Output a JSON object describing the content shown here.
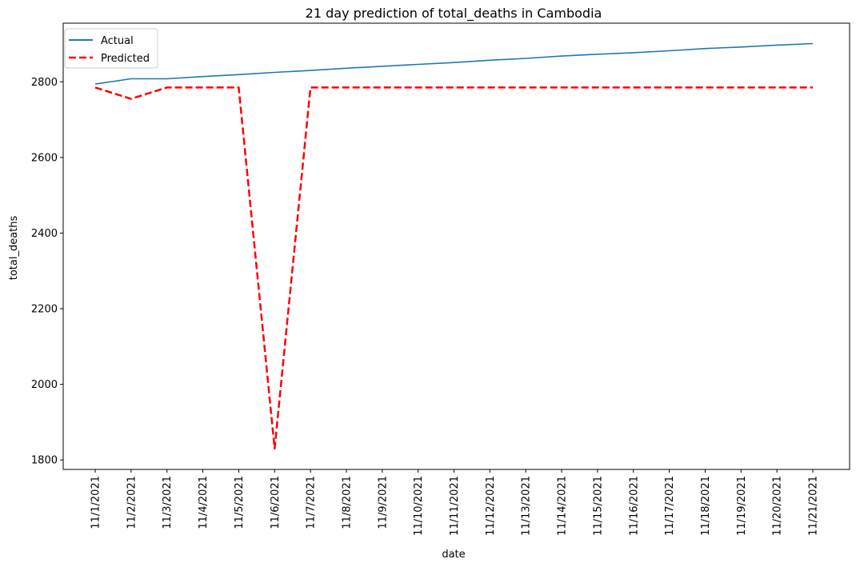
{
  "chart_data": {
    "type": "line",
    "title": "21 day prediction of total_deaths in Cambodia",
    "xlabel": "date",
    "ylabel": "total_deaths",
    "categories": [
      "11/1/2021",
      "11/2/2021",
      "11/3/2021",
      "11/4/2021",
      "11/5/2021",
      "11/6/2021",
      "11/7/2021",
      "11/8/2021",
      "11/9/2021",
      "11/10/2021",
      "11/11/2021",
      "11/12/2021",
      "11/13/2021",
      "11/14/2021",
      "11/15/2021",
      "11/16/2021",
      "11/17/2021",
      "11/18/2021",
      "11/19/2021",
      "11/20/2021",
      "11/21/2021"
    ],
    "ylim": [
      1775,
      2955
    ],
    "yticks": [
      1800,
      2000,
      2200,
      2400,
      2600,
      2800
    ],
    "grid": false,
    "legend_position": "top-left",
    "series": [
      {
        "name": "Actual",
        "color": "#1f77b4",
        "style": "solid",
        "values": [
          2794,
          2808,
          2808,
          2814,
          2819,
          2825,
          2830,
          2836,
          2841,
          2846,
          2851,
          2857,
          2862,
          2868,
          2873,
          2877,
          2882,
          2888,
          2892,
          2897,
          2901
        ]
      },
      {
        "name": "Predicted",
        "color": "#ff0000",
        "style": "dashed",
        "values": [
          2785,
          2755,
          2785,
          2785,
          2785,
          1830,
          2785,
          2785,
          2785,
          2785,
          2785,
          2785,
          2785,
          2785,
          2785,
          2785,
          2785,
          2785,
          2785,
          2785,
          2785
        ]
      }
    ]
  }
}
